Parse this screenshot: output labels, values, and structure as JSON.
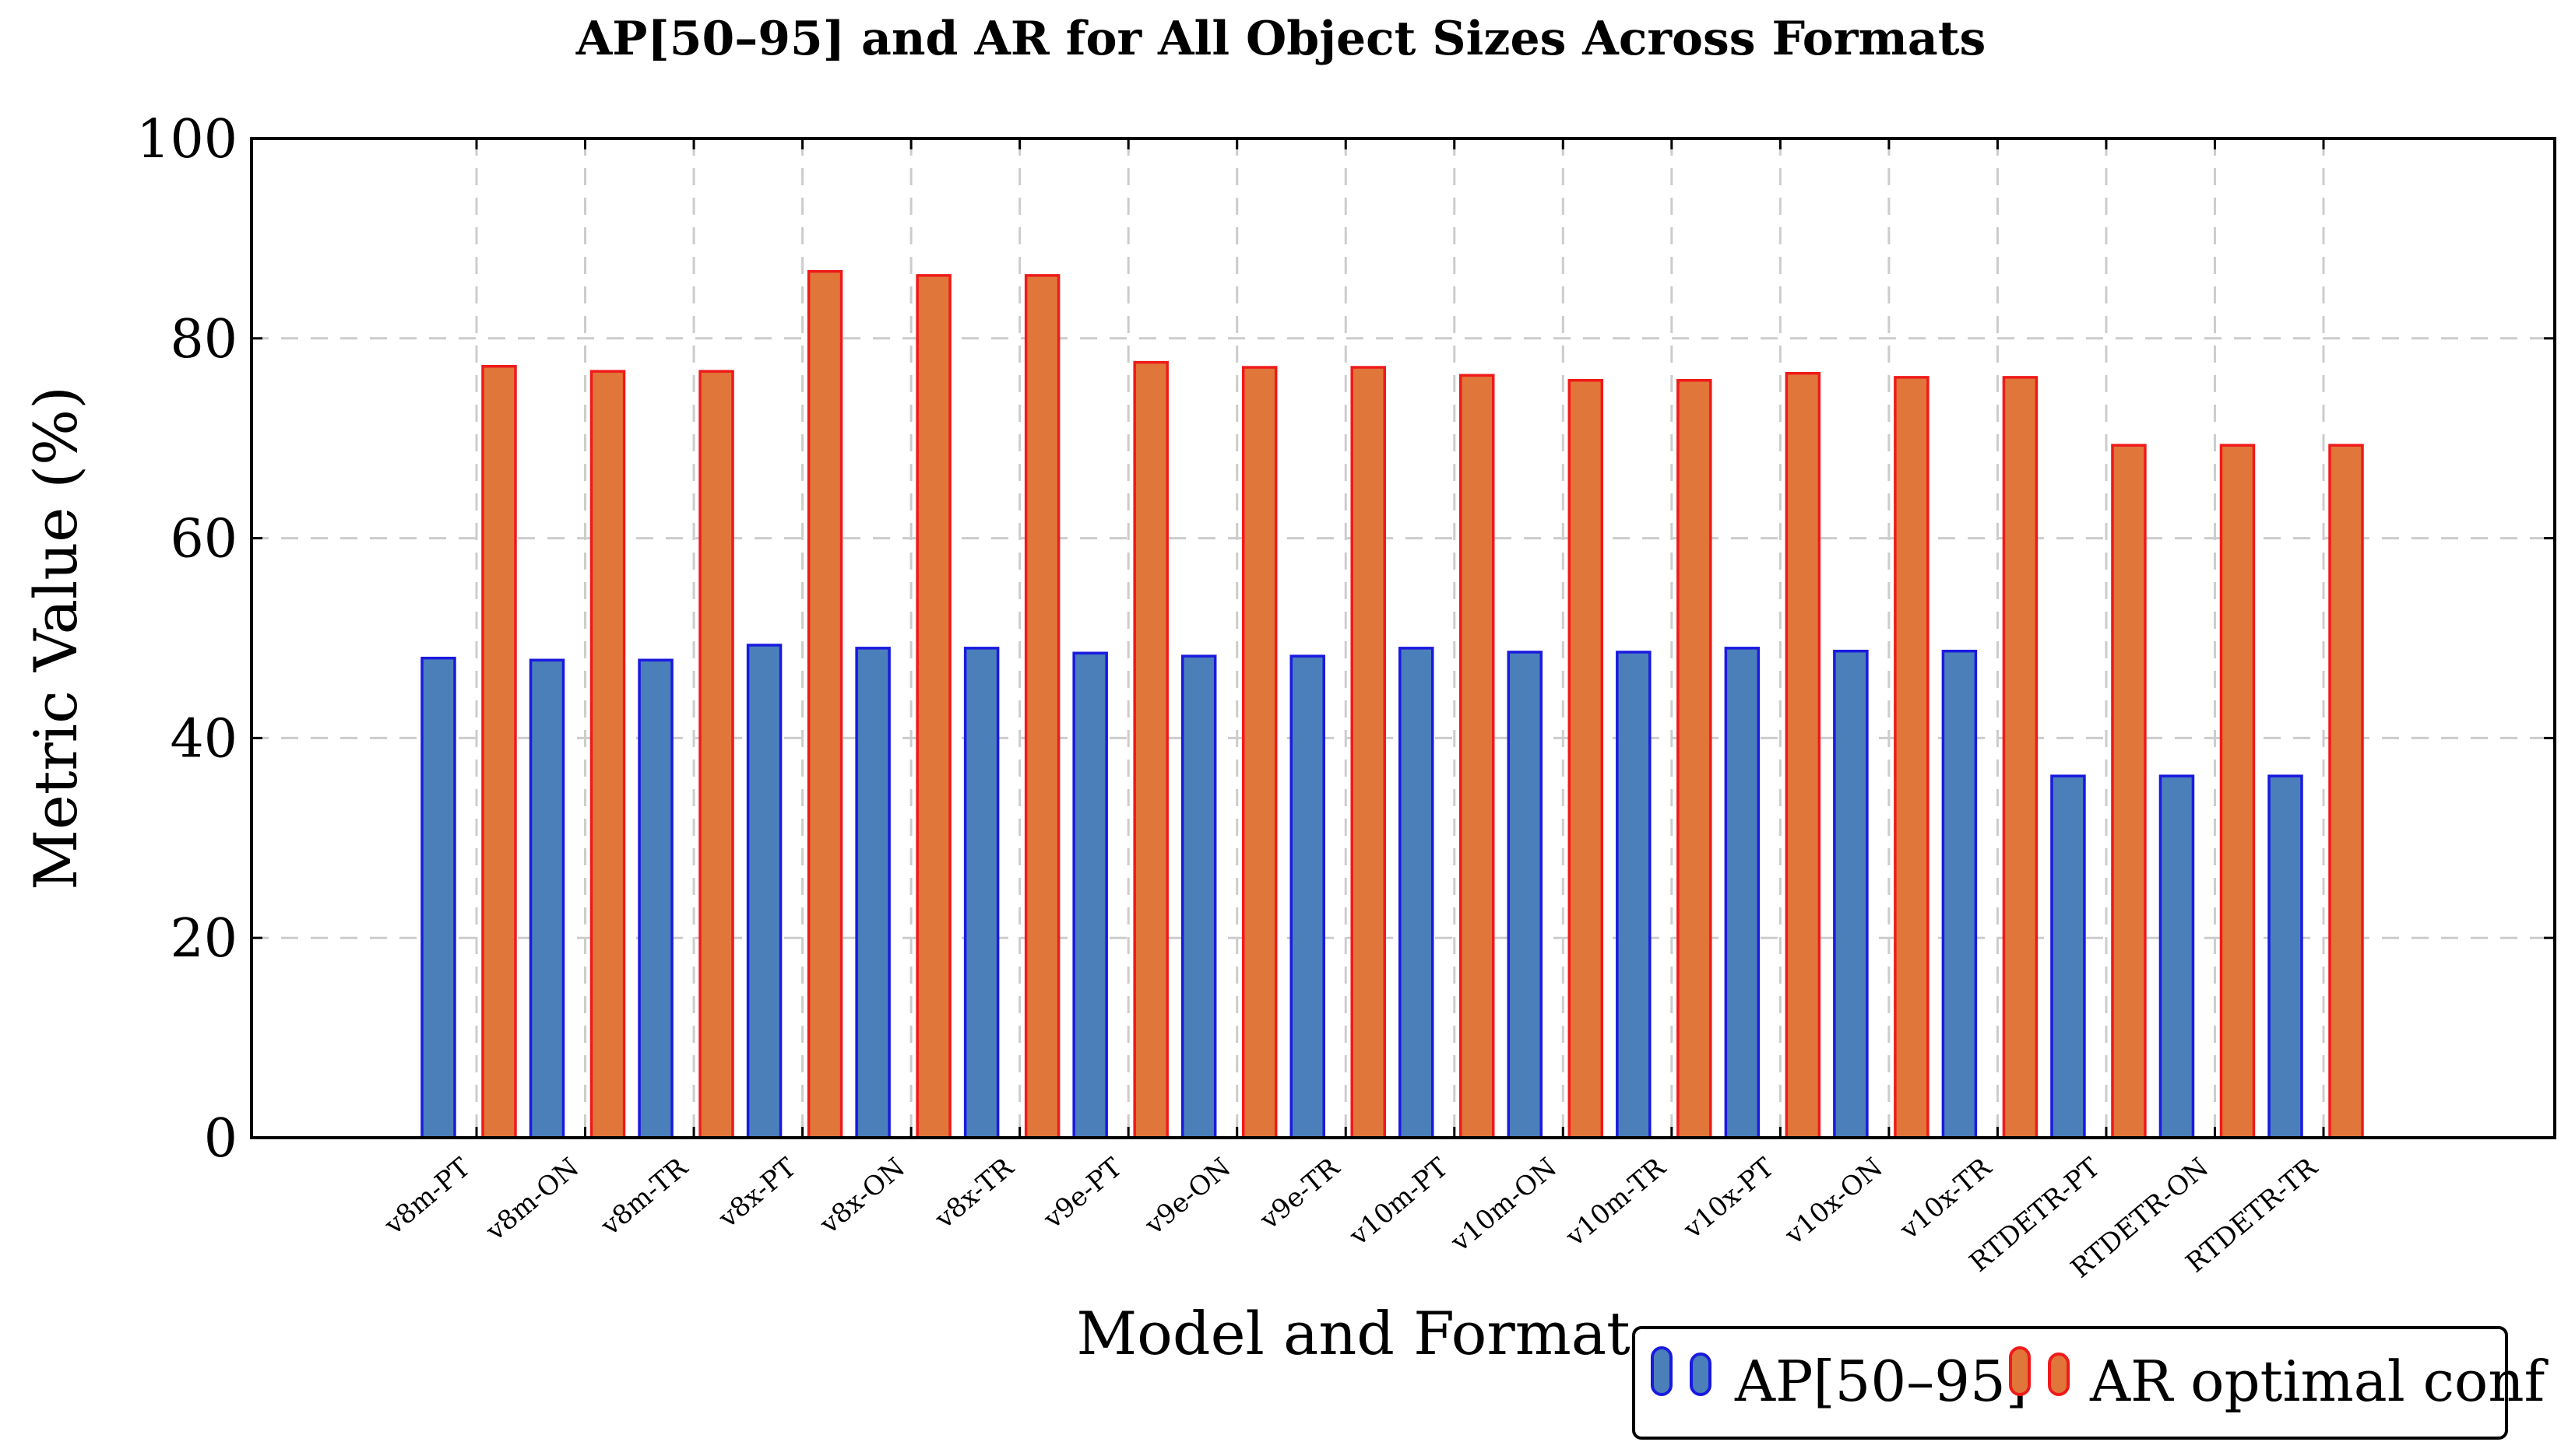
{
  "chart_data": {
    "type": "bar",
    "title": "AP[50–95] and AR for All Object Sizes Across Formats",
    "xlabel": "Model and Format",
    "ylabel": "Metric Value (%)",
    "ylim": [
      0,
      100
    ],
    "yticks": [
      0,
      20,
      40,
      60,
      80,
      100
    ],
    "grid": true,
    "legend_position": "bottom-right",
    "categories": [
      "v8m-PT",
      "v8m-ON",
      "v8m-TR",
      "v8x-PT",
      "v8x-ON",
      "v8x-TR",
      "v9e-PT",
      "v9e-ON",
      "v9e-TR",
      "v10m-PT",
      "v10m-ON",
      "v10m-TR",
      "v10x-PT",
      "v10x-ON",
      "v10x-TR",
      "RTDETR-PT",
      "RTDETR-ON",
      "RTDETR-TR"
    ],
    "series": [
      {
        "name": "AP[50–95]",
        "fill": "#4a7fba",
        "stroke": "#1a1adf",
        "values": [
          48.0,
          47.8,
          47.8,
          49.3,
          49.0,
          49.0,
          48.5,
          48.2,
          48.2,
          49.0,
          48.6,
          48.6,
          49.0,
          48.7,
          48.7,
          36.2,
          36.2,
          36.2
        ]
      },
      {
        "name": "AR optimal conf",
        "fill": "#e0763a",
        "stroke": "#ef1a1a",
        "values": [
          77.2,
          76.7,
          76.7,
          86.7,
          86.3,
          86.3,
          77.6,
          77.1,
          77.1,
          76.3,
          75.8,
          75.8,
          76.5,
          76.1,
          76.1,
          69.3,
          69.3,
          69.3
        ]
      }
    ]
  }
}
